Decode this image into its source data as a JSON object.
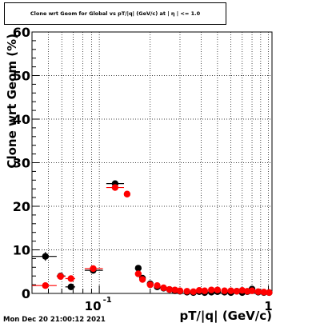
{
  "title": "Clone wrt Geom for Global vs pT/|q| (GeV/c) at | η | <= 1.0",
  "footer": "Mon Dec 20 21:00:12 2021",
  "chart_data": {
    "type": "scatter",
    "title": "Clone wrt Geom for Global vs pT/|q| (GeV/c) at | η | <= 1.0",
    "xlabel": "pT/|q| (GeV/c)",
    "ylabel": "Clone wrt Geom (%)",
    "xscale": "log",
    "xlim": [
      0.04,
      1.05
    ],
    "ylim": [
      0,
      60
    ],
    "grid": true,
    "yticks": [
      "0",
      "10",
      "20",
      "30",
      "40",
      "50",
      "60"
    ],
    "xtick_major": [
      "10^-1",
      "1"
    ],
    "series": [
      {
        "color": "#000000",
        "points": [
          {
            "x": 0.048,
            "xlo": 0.04,
            "xhi": 0.056,
            "y": 8.5,
            "yerr": 1.0
          },
          {
            "x": 0.059,
            "xlo": 0.056,
            "xhi": 0.063,
            "y": 4.0,
            "yerr": 0.5
          },
          {
            "x": 0.068,
            "xlo": 0.063,
            "xhi": 0.072,
            "y": 1.5,
            "yerr": 0.4
          },
          {
            "x": 0.092,
            "xlo": 0.082,
            "xhi": 0.105,
            "y": 5.3,
            "yerr": 0.5
          },
          {
            "x": 0.124,
            "xlo": 0.11,
            "xhi": 0.14,
            "y": 25.2,
            "yerr": 0.6
          },
          {
            "x": 0.17,
            "y": 5.8,
            "yerr": 0.4
          },
          {
            "x": 0.18,
            "y": 3.5,
            "yerr": 0.3
          },
          {
            "x": 0.2,
            "y": 2.2,
            "yerr": 0.3
          },
          {
            "x": 0.22,
            "y": 1.5,
            "yerr": 0.2
          },
          {
            "x": 0.24,
            "y": 1.2,
            "yerr": 0.2
          },
          {
            "x": 0.26,
            "y": 0.9,
            "yerr": 0.2
          },
          {
            "x": 0.28,
            "y": 0.6,
            "yerr": 0.2
          },
          {
            "x": 0.3,
            "y": 0.5,
            "yerr": 0.2
          },
          {
            "x": 0.33,
            "y": 0.3,
            "yerr": 0.2
          },
          {
            "x": 0.36,
            "y": 0.2,
            "yerr": 0.2
          },
          {
            "x": 0.39,
            "y": 0.4,
            "yerr": 0.2
          },
          {
            "x": 0.42,
            "y": 0.2,
            "yerr": 0.2
          },
          {
            "x": 0.46,
            "y": 0.3,
            "yerr": 0.2
          },
          {
            "x": 0.5,
            "y": 0.4,
            "yerr": 0.2
          },
          {
            "x": 0.55,
            "y": 0.3,
            "yerr": 0.2
          },
          {
            "x": 0.6,
            "y": 0.2,
            "yerr": 0.2
          },
          {
            "x": 0.65,
            "y": 0.5,
            "yerr": 0.2
          },
          {
            "x": 0.7,
            "y": 0.2,
            "yerr": 0.2
          },
          {
            "x": 0.75,
            "y": 0.4,
            "yerr": 0.2
          },
          {
            "x": 0.8,
            "y": 1.0,
            "yerr": 0.3
          },
          {
            "x": 0.87,
            "y": 0.3,
            "yerr": 0.2
          },
          {
            "x": 0.94,
            "y": 0.2,
            "yerr": 0.2
          },
          {
            "x": 1.01,
            "y": 0.2,
            "yerr": 0.2
          }
        ]
      },
      {
        "color": "#ff0000",
        "points": [
          {
            "x": 0.048,
            "xlo": 0.04,
            "xhi": 0.056,
            "y": 1.8,
            "yerr": 0.4
          },
          {
            "x": 0.059,
            "xlo": 0.056,
            "xhi": 0.063,
            "y": 3.9,
            "yerr": 0.5
          },
          {
            "x": 0.068,
            "xlo": 0.063,
            "xhi": 0.072,
            "y": 3.4,
            "yerr": 0.4
          },
          {
            "x": 0.092,
            "xlo": 0.082,
            "xhi": 0.105,
            "y": 5.7,
            "yerr": 0.5
          },
          {
            "x": 0.124,
            "xlo": 0.11,
            "xhi": 0.14,
            "y": 24.3,
            "yerr": 0.6
          },
          {
            "x": 0.146,
            "xlo": 0.14,
            "xhi": 0.152,
            "y": 22.8,
            "yerr": 0.5
          },
          {
            "x": 0.17,
            "y": 4.5,
            "yerr": 0.3
          },
          {
            "x": 0.18,
            "y": 3.2,
            "yerr": 0.3
          },
          {
            "x": 0.2,
            "y": 2.0,
            "yerr": 0.3
          },
          {
            "x": 0.22,
            "y": 1.8,
            "yerr": 0.2
          },
          {
            "x": 0.24,
            "y": 1.3,
            "yerr": 0.2
          },
          {
            "x": 0.26,
            "y": 0.9,
            "yerr": 0.2
          },
          {
            "x": 0.28,
            "y": 0.8,
            "yerr": 0.2
          },
          {
            "x": 0.3,
            "y": 0.6,
            "yerr": 0.2
          },
          {
            "x": 0.33,
            "y": 0.5,
            "yerr": 0.2
          },
          {
            "x": 0.36,
            "y": 0.4,
            "yerr": 0.2
          },
          {
            "x": 0.39,
            "y": 0.7,
            "yerr": 0.2
          },
          {
            "x": 0.42,
            "y": 0.6,
            "yerr": 0.2
          },
          {
            "x": 0.46,
            "y": 0.8,
            "yerr": 0.2
          },
          {
            "x": 0.5,
            "y": 0.8,
            "yerr": 0.2
          },
          {
            "x": 0.55,
            "y": 0.6,
            "yerr": 0.2
          },
          {
            "x": 0.6,
            "y": 0.6,
            "yerr": 0.2
          },
          {
            "x": 0.65,
            "y": 0.5,
            "yerr": 0.2
          },
          {
            "x": 0.7,
            "y": 0.7,
            "yerr": 0.2
          },
          {
            "x": 0.75,
            "y": 0.5,
            "yerr": 0.2
          },
          {
            "x": 0.8,
            "y": 0.6,
            "yerr": 0.2
          },
          {
            "x": 0.87,
            "y": 0.4,
            "yerr": 0.2
          },
          {
            "x": 0.94,
            "y": 0.3,
            "yerr": 0.2
          },
          {
            "x": 1.01,
            "y": 0.2,
            "yerr": 0.2
          }
        ]
      }
    ]
  }
}
